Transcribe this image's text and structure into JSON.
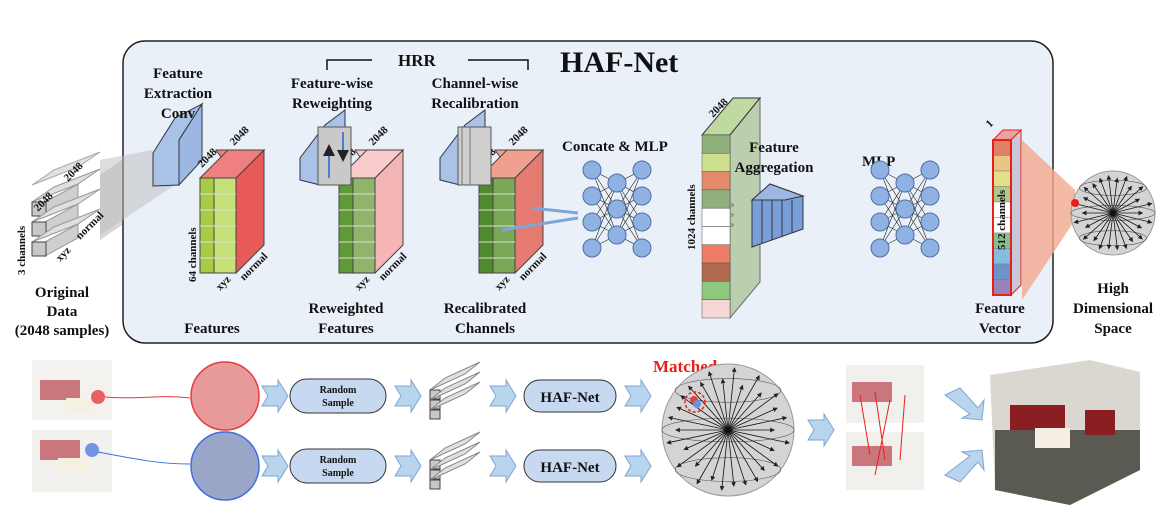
{
  "title": "HAF-Net",
  "hrr_label": "HRR",
  "labels": {
    "original_data": [
      "Original",
      "Data",
      "(2048 samples)"
    ],
    "feature_extraction": [
      "Feature",
      "Extraction",
      "Conv"
    ],
    "feature_wise": [
      "Feature-wise",
      "Reweighting"
    ],
    "channel_wise": [
      "Channel-wise",
      "Recalibration"
    ],
    "features": "Features",
    "reweighted": [
      "Reweighted",
      "Features"
    ],
    "recalibrated": [
      "Recalibrated",
      "Channels"
    ],
    "concat_mlp": "Concate & MLP",
    "feature_aggregation": [
      "Feature",
      "Aggregation"
    ],
    "mlp": "MLP",
    "feature_vector": [
      "Feature",
      "Vector"
    ],
    "high_dim": [
      "High",
      "Dimensional",
      "Space"
    ]
  },
  "dims": {
    "d2048": "2048",
    "three_channels": "3 channels",
    "sixtyfour_channels": "64 channels",
    "c1024": "1024 channels",
    "c512": "512 channels",
    "one": "1",
    "xyz": "xyz",
    "normal": "normal"
  },
  "bottom": {
    "random_sample": [
      "Random",
      "Sample"
    ],
    "haf_net": "HAF-Net",
    "matched": "Matched"
  },
  "colors": {
    "panel": "#eaf0f8",
    "arrow": "#b9d5ee",
    "neuron": "#8fb2e3",
    "green": "#9fca3c",
    "red": "#e85a5a",
    "matched": "#e8201a"
  }
}
